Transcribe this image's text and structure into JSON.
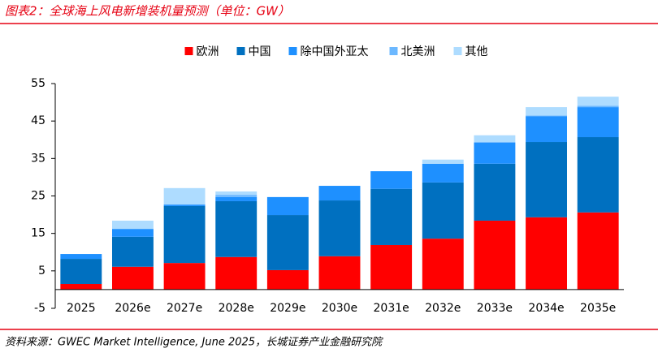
{
  "chart_data": {
    "type": "stacked-bar",
    "title": "图表2：全球海上风电新增装机量预测（单位：GW）",
    "categories": [
      "2025",
      "2026e",
      "2027e",
      "2028e",
      "2029e",
      "2030e",
      "2031e",
      "2032e",
      "2033e",
      "2034e",
      "2035e"
    ],
    "series": [
      {
        "name": "欧洲",
        "color": "#ff0000",
        "values": [
          1.5,
          6.1,
          7.1,
          8.7,
          5.2,
          8.9,
          11.9,
          13.6,
          18.4,
          19.3,
          20.6
        ]
      },
      {
        "name": "中国",
        "color": "#0070c0",
        "values": [
          6.7,
          8.0,
          15.2,
          14.9,
          14.7,
          14.9,
          15.0,
          15.0,
          15.2,
          20.1,
          20.1
        ]
      },
      {
        "name": "除中国外亚太",
        "color": "#1e90ff",
        "values": [
          1.3,
          2.1,
          0.4,
          1.1,
          4.8,
          3.9,
          4.7,
          5.0,
          5.6,
          6.9,
          8.0
        ]
      },
      {
        "name": "北美洲",
        "color": "#6cb8ff",
        "values": [
          0,
          0,
          0,
          0.6,
          0,
          0,
          0,
          0,
          0.2,
          0.2,
          0.4
        ]
      },
      {
        "name": "其他",
        "color": "#aedcff",
        "values": [
          0,
          2.2,
          4.4,
          0.9,
          0,
          0,
          0,
          1.1,
          1.8,
          2.2,
          2.4
        ]
      }
    ],
    "ylim": [
      -5,
      55
    ],
    "yticks": [
      -5,
      5,
      15,
      25,
      35,
      45,
      55
    ]
  },
  "source": "资料来源：GWEC Market Intelligence, June 2025，长城证券产业金融研究院"
}
